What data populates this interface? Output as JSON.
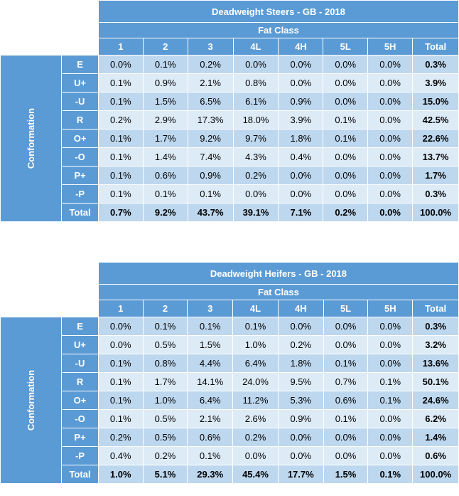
{
  "tables": [
    {
      "title": "Deadweight Steers - GB - 2018",
      "group_header": "Fat Class",
      "side_label": "Conformation",
      "columns": [
        "1",
        "2",
        "3",
        "4L",
        "4H",
        "5L",
        "5H",
        "Total"
      ],
      "rows": [
        {
          "label": "E",
          "values": [
            "0.0%",
            "0.1%",
            "0.2%",
            "0.0%",
            "0.0%",
            "0.0%",
            "0.0%",
            "0.3%"
          ]
        },
        {
          "label": "U+",
          "values": [
            "0.1%",
            "0.9%",
            "2.1%",
            "0.8%",
            "0.0%",
            "0.0%",
            "0.0%",
            "3.9%"
          ]
        },
        {
          "label": "-U",
          "values": [
            "0.1%",
            "1.5%",
            "6.5%",
            "6.1%",
            "0.9%",
            "0.0%",
            "0.0%",
            "15.0%"
          ]
        },
        {
          "label": "R",
          "values": [
            "0.2%",
            "2.9%",
            "17.3%",
            "18.0%",
            "3.9%",
            "0.1%",
            "0.0%",
            "42.5%"
          ]
        },
        {
          "label": "O+",
          "values": [
            "0.1%",
            "1.7%",
            "9.2%",
            "9.7%",
            "1.8%",
            "0.1%",
            "0.0%",
            "22.6%"
          ]
        },
        {
          "label": "-O",
          "values": [
            "0.1%",
            "1.4%",
            "7.4%",
            "4.3%",
            "0.4%",
            "0.0%",
            "0.0%",
            "13.7%"
          ]
        },
        {
          "label": "P+",
          "values": [
            "0.1%",
            "0.6%",
            "0.9%",
            "0.2%",
            "0.0%",
            "0.0%",
            "0.0%",
            "1.7%"
          ]
        },
        {
          "label": "-P",
          "values": [
            "0.1%",
            "0.1%",
            "0.1%",
            "0.0%",
            "0.0%",
            "0.0%",
            "0.0%",
            "0.3%"
          ]
        },
        {
          "label": "Total",
          "values": [
            "0.7%",
            "9.2%",
            "43.7%",
            "39.1%",
            "7.1%",
            "0.2%",
            "0.0%",
            "100.0%"
          ]
        }
      ]
    },
    {
      "title": "Deadweight Heifers - GB - 2018",
      "group_header": "Fat Class",
      "side_label": "Conformation",
      "columns": [
        "1",
        "2",
        "3",
        "4L",
        "4H",
        "5L",
        "5H",
        "Total"
      ],
      "rows": [
        {
          "label": "E",
          "values": [
            "0.0%",
            "0.1%",
            "0.1%",
            "0.1%",
            "0.0%",
            "0.0%",
            "0.0%",
            "0.3%"
          ]
        },
        {
          "label": "U+",
          "values": [
            "0.0%",
            "0.5%",
            "1.5%",
            "1.0%",
            "0.2%",
            "0.0%",
            "0.0%",
            "3.2%"
          ]
        },
        {
          "label": "-U",
          "values": [
            "0.1%",
            "0.8%",
            "4.4%",
            "6.4%",
            "1.8%",
            "0.1%",
            "0.0%",
            "13.6%"
          ]
        },
        {
          "label": "R",
          "values": [
            "0.1%",
            "1.7%",
            "14.1%",
            "24.0%",
            "9.5%",
            "0.7%",
            "0.1%",
            "50.1%"
          ]
        },
        {
          "label": "O+",
          "values": [
            "0.1%",
            "1.0%",
            "6.4%",
            "11.2%",
            "5.3%",
            "0.6%",
            "0.1%",
            "24.6%"
          ]
        },
        {
          "label": "-O",
          "values": [
            "0.1%",
            "0.5%",
            "2.1%",
            "2.6%",
            "0.9%",
            "0.1%",
            "0.0%",
            "6.2%"
          ]
        },
        {
          "label": "P+",
          "values": [
            "0.2%",
            "0.5%",
            "0.6%",
            "0.2%",
            "0.0%",
            "0.0%",
            "0.0%",
            "1.4%"
          ]
        },
        {
          "label": "-P",
          "values": [
            "0.4%",
            "0.2%",
            "0.1%",
            "0.0%",
            "0.0%",
            "0.0%",
            "0.0%",
            "0.6%"
          ]
        },
        {
          "label": "Total",
          "values": [
            "1.0%",
            "5.1%",
            "29.3%",
            "45.4%",
            "17.7%",
            "1.5%",
            "0.1%",
            "100.0%"
          ]
        }
      ]
    }
  ],
  "colors": {
    "header_blue": "#5b9bd5",
    "row_dark": "#bdd7ee",
    "row_light": "#ddebf7",
    "header_text": "#ffffff"
  }
}
